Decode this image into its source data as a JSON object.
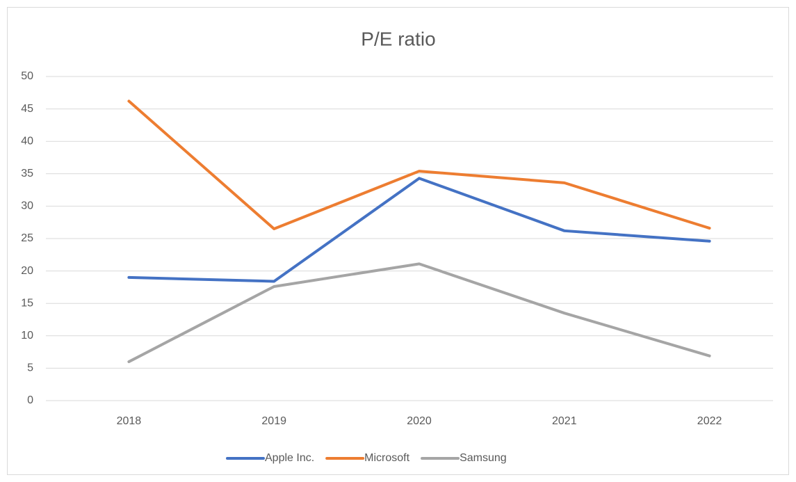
{
  "chart_data": {
    "type": "line",
    "title": "P/E ratio",
    "categories": [
      "2018",
      "2019",
      "2020",
      "2021",
      "2022"
    ],
    "series": [
      {
        "name": "Apple Inc.",
        "color": "#4472c4",
        "values": [
          19.0,
          18.4,
          34.3,
          26.2,
          24.6
        ]
      },
      {
        "name": "Microsoft",
        "color": "#ed7d31",
        "values": [
          46.2,
          26.5,
          35.4,
          33.6,
          26.6
        ]
      },
      {
        "name": "Samsung",
        "color": "#a5a5a5",
        "values": [
          6.0,
          17.6,
          21.1,
          13.5,
          6.9
        ]
      }
    ],
    "ylim": [
      0,
      50
    ],
    "yticks": [
      0,
      5,
      10,
      15,
      20,
      25,
      30,
      35,
      40,
      45,
      50
    ],
    "grid": true,
    "legend": "bottom"
  }
}
